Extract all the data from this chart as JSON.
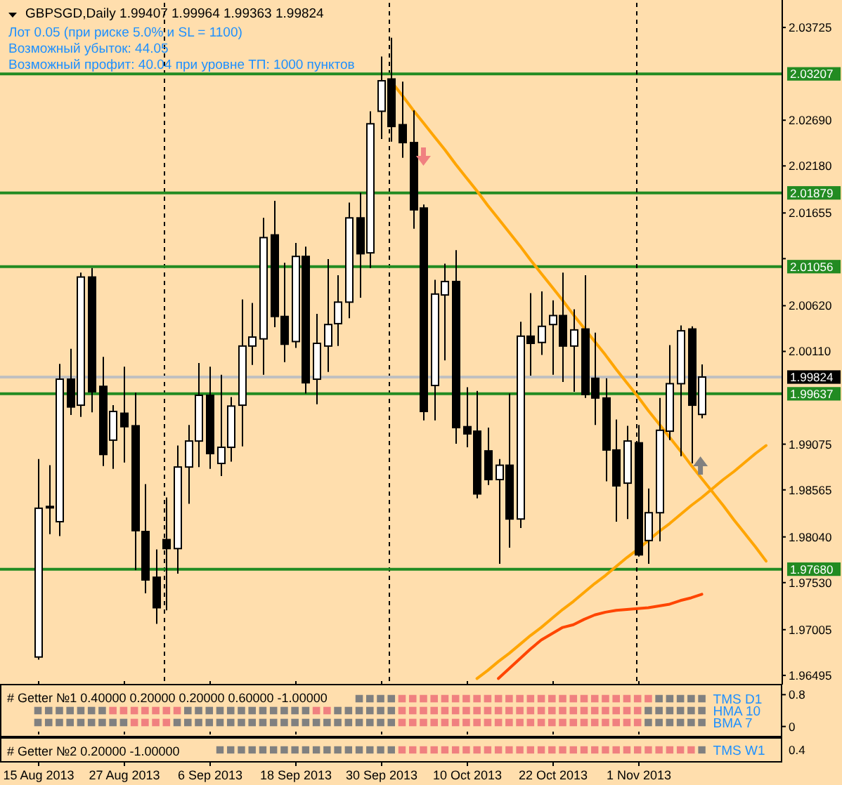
{
  "chart_data": [
    {
      "type": "candlestick",
      "title": "GBPSGD,Daily 1.99407 1.99964 1.99363 1.99824",
      "annotations": [
        "Лот 0.05 (при риске 5.0% и SL = 1100)",
        "Возможный убыток: 44.05",
        "Возможный профит: 40.04 при уровне ТП: 1000 пунктов"
      ],
      "categories": [
        "15 Aug 2013",
        null,
        null,
        null,
        null,
        null,
        null,
        null,
        "27 Aug 2013",
        null,
        null,
        null,
        null,
        null,
        null,
        null,
        "6 Sep 2013",
        null,
        null,
        null,
        null,
        null,
        null,
        null,
        "18 Sep 2013",
        null,
        null,
        null,
        null,
        null,
        null,
        null,
        "30 Sep 2013",
        null,
        null,
        null,
        null,
        null,
        null,
        null,
        "10 Oct 2013",
        null,
        null,
        null,
        null,
        null,
        null,
        null,
        "22 Oct 2013",
        null,
        null,
        null,
        null,
        null,
        null,
        null,
        "1 Nov 2013",
        null,
        null,
        null,
        null,
        null,
        null,
        null,
        null,
        null,
        null,
        null,
        null
      ],
      "ohlc": [
        [
          1.967,
          1.9891,
          1.9667,
          1.9836
        ],
        [
          1.9837,
          1.9884,
          1.9807,
          1.9838
        ],
        [
          1.9821,
          1.9997,
          1.9805,
          1.998
        ],
        [
          1.998,
          2.0014,
          1.994,
          1.9949
        ],
        [
          1.9951,
          2.0099,
          1.9938,
          2.0094
        ],
        [
          2.0094,
          2.0104,
          1.9943,
          1.9966
        ],
        [
          1.9972,
          2.0005,
          1.9883,
          1.9896
        ],
        [
          1.9912,
          1.9951,
          1.988,
          1.9944
        ],
        [
          1.9942,
          1.9994,
          1.9887,
          1.9927
        ],
        [
          1.9928,
          1.9965,
          1.9767,
          1.9811
        ],
        [
          1.981,
          1.9863,
          1.9741,
          1.9756
        ],
        [
          1.9759,
          1.979,
          1.9707,
          1.9725
        ],
        [
          1.9801,
          1.9848,
          1.9722,
          1.9791
        ],
        [
          1.9791,
          1.9906,
          1.9763,
          1.9882
        ],
        [
          1.9882,
          1.9929,
          1.9841,
          1.9911
        ],
        [
          1.9911,
          1.9998,
          1.9882,
          1.9962
        ],
        [
          1.9962,
          1.9994,
          1.988,
          1.9897
        ],
        [
          1.9886,
          1.9985,
          1.9872,
          1.9904
        ],
        [
          1.9904,
          1.996,
          1.9888,
          1.995
        ],
        [
          1.9951,
          2.0069,
          1.9905,
          2.0017
        ],
        [
          2.0017,
          2.0065,
          1.9996,
          2.0027
        ],
        [
          2.0025,
          2.016,
          1.9985,
          2.0138
        ],
        [
          2.0141,
          2.0179,
          2.0038,
          2.005
        ],
        [
          2.005,
          2.011,
          1.9999,
          2.0019
        ],
        [
          2.0022,
          2.0132,
          2.0015,
          2.0117
        ],
        [
          2.0117,
          2.0128,
          1.9964,
          1.9976
        ],
        [
          1.998,
          2.0053,
          1.9952,
          2.002
        ],
        [
          2.0017,
          2.0114,
          1.9988,
          2.0041
        ],
        [
          2.0042,
          2.0096,
          2.0017,
          2.0066
        ],
        [
          2.0066,
          2.0177,
          2.0048,
          2.016
        ],
        [
          2.016,
          2.0188,
          2.0071,
          2.012
        ],
        [
          2.0121,
          2.0279,
          2.0104,
          2.0265
        ],
        [
          2.0279,
          2.034,
          2.0248,
          2.0313
        ],
        [
          2.0315,
          2.0361,
          2.0245,
          2.0262
        ],
        [
          2.0264,
          2.0312,
          2.0227,
          2.0244
        ],
        [
          2.0244,
          2.028,
          2.0148,
          2.0169
        ],
        [
          2.0171,
          2.0175,
          1.9934,
          1.9944
        ],
        [
          1.9973,
          2.0091,
          1.9934,
          2.0075
        ],
        [
          2.0074,
          2.0109,
          2.0001,
          2.0089
        ],
        [
          2.0089,
          2.0124,
          1.9908,
          1.9926
        ],
        [
          1.9927,
          1.9971,
          1.9904,
          1.9919
        ],
        [
          1.9922,
          1.9967,
          1.9847,
          1.9852
        ],
        [
          1.99,
          1.9926,
          1.9862,
          1.9868
        ],
        [
          1.9868,
          1.9891,
          1.9774,
          1.9884
        ],
        [
          1.9884,
          1.9964,
          1.9792,
          1.9824
        ],
        [
          1.9824,
          2.0044,
          1.9814,
          2.0028
        ],
        [
          2.0028,
          2.0076,
          1.9984,
          2.002
        ],
        [
          2.0021,
          2.0078,
          2.0007,
          2.0039
        ],
        [
          2.0041,
          2.0068,
          1.9985,
          2.0051
        ],
        [
          2.0051,
          2.0099,
          1.9977,
          2.0017
        ],
        [
          2.0017,
          2.0058,
          1.9966,
          2.0035
        ],
        [
          2.0036,
          2.0096,
          1.9959,
          1.9963
        ],
        [
          1.9981,
          2.0032,
          1.9929,
          1.9959
        ],
        [
          1.9959,
          1.9981,
          1.9866,
          1.9901
        ],
        [
          1.9901,
          1.9935,
          1.9821,
          1.9861
        ],
        [
          1.9864,
          1.9928,
          1.9824,
          1.9911
        ],
        [
          1.9909,
          1.9929,
          1.9782,
          1.9784
        ],
        [
          1.98,
          1.9858,
          1.9774,
          1.9831
        ],
        [
          1.9831,
          1.9959,
          1.9799,
          1.9923
        ],
        [
          1.9922,
          2.0018,
          1.9912,
          1.9975
        ],
        [
          1.9975,
          2.004,
          1.9894,
          2.0034
        ],
        [
          2.0036,
          2.0039,
          1.9886,
          1.9951
        ],
        [
          1.99407,
          1.99964,
          1.99363,
          1.99824
        ],
        null,
        null,
        null,
        null,
        null,
        null
      ],
      "series": [
        {
          "type": "line",
          "color": "#ff4500",
          "values": [
            null,
            null,
            null,
            null,
            null,
            null,
            null,
            null,
            null,
            null,
            null,
            null,
            null,
            null,
            null,
            null,
            null,
            null,
            null,
            null,
            null,
            null,
            null,
            null,
            null,
            null,
            null,
            null,
            null,
            null,
            null,
            null,
            null,
            null,
            null,
            null,
            null,
            null,
            null,
            null,
            null,
            null,
            null,
            1.9646,
            1.9657,
            1.9668,
            1.9679,
            1.9689,
            1.9696,
            1.9703,
            1.9706,
            1.9712,
            1.9717,
            1.972,
            1.9722,
            1.9723,
            1.9724,
            1.9725,
            1.9727,
            1.9729,
            1.9733,
            1.9736,
            1.974,
            null,
            null,
            null,
            null,
            null,
            null
          ]
        },
        {
          "type": "line",
          "color": "#ffa500",
          "values": [
            null,
            null,
            null,
            null,
            null,
            null,
            null,
            null,
            null,
            null,
            null,
            null,
            null,
            null,
            null,
            null,
            null,
            null,
            null,
            null,
            null,
            null,
            null,
            null,
            null,
            null,
            null,
            null,
            null,
            null,
            null,
            null,
            null,
            2.0312,
            2.0297,
            2.0281,
            2.0266,
            2.0251,
            2.0236,
            2.022,
            2.0205,
            2.019,
            2.0174,
            2.0159,
            2.0144,
            2.0129,
            2.0113,
            2.0098,
            2.0083,
            2.0068,
            2.0052,
            2.0037,
            2.0022,
            2.0007,
            1.9991,
            1.9976,
            1.9961,
            1.9945,
            1.993,
            1.9915,
            1.99,
            1.9884,
            1.9869,
            1.9854,
            1.9839,
            1.9823,
            1.9808,
            1.9793,
            1.9777
          ]
        },
        {
          "type": "line",
          "color": "#ffa500",
          "values": [
            null,
            null,
            null,
            null,
            null,
            null,
            null,
            null,
            null,
            null,
            null,
            null,
            null,
            null,
            null,
            null,
            null,
            null,
            null,
            null,
            null,
            null,
            null,
            null,
            null,
            null,
            null,
            null,
            null,
            null,
            null,
            null,
            null,
            null,
            null,
            null,
            null,
            null,
            null,
            null,
            null,
            1.9646,
            1.9655,
            1.9665,
            1.9674,
            1.9684,
            1.9694,
            1.9703,
            1.9713,
            1.9723,
            1.9732,
            1.9742,
            1.9752,
            1.9761,
            1.9771,
            1.9781,
            1.979,
            1.98,
            1.981,
            1.9819,
            1.9829,
            1.9839,
            1.9848,
            1.9858,
            1.9868,
            1.9877,
            1.9887,
            1.9897,
            1.9906
          ]
        }
      ],
      "ylim": [
        1.964,
        2.04
      ],
      "yticks": [
        2.03725,
        {
          "value": 2.0269,
          "label": "2.02690"
        },
        {
          "value": 2.0218,
          "label": "2.02180"
        },
        2.01655,
        {
          "value": 2.01145,
          "label": null
        },
        {
          "value": 2.0062,
          "label": "2.00620"
        },
        {
          "value": 2.0011,
          "label": "2.00110"
        },
        1.99075,
        1.98565,
        {
          "value": 1.9804,
          "label": "1.98040"
        },
        {
          "value": 1.9753,
          "label": "1.97530"
        },
        1.97005,
        1.96495
      ],
      "ref_lines": [
        {
          "axis": "y",
          "value": 2.03207,
          "label": "2.03207",
          "color": "#228b22"
        },
        {
          "axis": "y",
          "value": 2.01879,
          "label": "2.01879",
          "color": "#228b22"
        },
        {
          "axis": "y",
          "value": 2.01056,
          "label": "2.01056",
          "color": "#228b22"
        },
        {
          "axis": "y",
          "value": 1.99824,
          "label": "1.99824",
          "color": "#c0c0c0"
        },
        {
          "axis": "y",
          "value": 1.99637,
          "label": "1.99637",
          "color": "#228b22"
        },
        {
          "axis": "y",
          "value": 1.9768,
          "label": "1.97680",
          "color": "#228b22"
        },
        {
          "axis": "x",
          "value": "1 Nov 2013",
          "color": "#000000",
          "line_style": "dashed"
        }
      ],
      "tick_labels": "y"
    },
    {
      "type": "scatter",
      "title": "# Getter №1 0.40000 0.20000 0.20000 0.60000 -1.00000",
      "marker": "square",
      "categories": [
        "15 Aug 2013",
        null,
        null,
        null,
        null,
        null,
        null,
        null,
        "27 Aug 2013",
        null,
        null,
        null,
        null,
        null,
        null,
        null,
        "6 Sep 2013",
        null,
        null,
        null,
        null,
        null,
        null,
        null,
        "18 Sep 2013",
        null,
        null,
        null,
        null,
        null,
        null,
        null,
        "30 Sep 2013",
        null,
        null,
        null,
        null,
        null,
        null,
        null,
        "10 Oct 2013",
        null,
        null,
        null,
        null,
        null,
        null,
        null,
        "22 Oct 2013",
        null,
        null,
        null,
        null,
        null,
        null,
        null,
        "1 Nov 2013",
        null,
        null,
        null,
        null,
        null,
        null,
        null,
        null,
        null,
        null,
        null,
        null
      ],
      "series": [
        {
          "name": "TMS D1",
          "values": [
            null,
            null,
            null,
            null,
            null,
            null,
            null,
            null,
            null,
            null,
            null,
            null,
            null,
            null,
            null,
            null,
            null,
            null,
            null,
            null,
            null,
            null,
            null,
            null,
            null,
            null,
            null,
            null,
            null,
            null,
            0.7,
            0.7,
            0.7,
            0.7,
            0.7,
            0.7,
            0.7,
            0.7,
            0.7,
            0.7,
            0.7,
            0.7,
            0.7,
            0.7,
            0.7,
            0.7,
            0.7,
            0.7,
            0.7,
            0.7,
            0.7,
            0.7,
            0.7,
            0.7,
            0.7,
            0.7,
            0.7,
            0.7,
            0.7,
            0.7,
            0.7,
            0.7,
            0.7,
            null,
            null,
            null,
            null,
            null,
            null
          ],
          "colors": [
            null,
            null,
            null,
            null,
            null,
            null,
            null,
            null,
            null,
            null,
            null,
            null,
            null,
            null,
            null,
            null,
            null,
            null,
            null,
            null,
            null,
            null,
            null,
            null,
            null,
            null,
            null,
            null,
            null,
            null,
            "#808080",
            "#808080",
            "#808080",
            "#808080",
            "#f08080",
            "#f08080",
            "#f08080",
            "#f08080",
            "#f08080",
            "#f08080",
            "#f08080",
            "#f08080",
            "#f08080",
            "#f08080",
            "#f08080",
            "#f08080",
            "#f08080",
            "#f08080",
            "#f08080",
            "#f08080",
            "#f08080",
            "#f08080",
            "#f08080",
            "#f08080",
            "#f08080",
            "#f08080",
            "#f08080",
            "#f08080",
            "#808080",
            "#808080",
            "#808080",
            "#808080",
            "#808080",
            null,
            null,
            null,
            null,
            null,
            null
          ]
        },
        {
          "name": "HMA 10",
          "values": [
            0.4,
            0.4,
            0.4,
            0.4,
            0.4,
            0.4,
            0.4,
            0.4,
            0.4,
            0.4,
            0.4,
            0.4,
            0.4,
            0.4,
            0.4,
            0.4,
            0.4,
            0.4,
            0.4,
            0.4,
            0.4,
            0.4,
            0.4,
            0.4,
            0.4,
            0.4,
            0.4,
            0.4,
            0.4,
            0.4,
            0.4,
            0.4,
            0.4,
            0.4,
            0.4,
            0.4,
            0.4,
            0.4,
            0.4,
            0.4,
            0.4,
            0.4,
            0.4,
            0.4,
            0.4,
            0.4,
            0.4,
            0.4,
            0.4,
            0.4,
            0.4,
            0.4,
            0.4,
            0.4,
            0.4,
            0.4,
            0.4,
            0.4,
            0.4,
            0.4,
            0.4,
            0.4,
            0.4,
            null,
            null,
            null,
            null,
            null,
            null
          ],
          "colors": [
            "#808080",
            "#808080",
            "#808080",
            "#808080",
            "#808080",
            "#808080",
            "#808080",
            "#f08080",
            "#f08080",
            "#f08080",
            "#f08080",
            "#f08080",
            "#f08080",
            "#f08080",
            "#808080",
            "#808080",
            "#808080",
            "#808080",
            "#808080",
            "#808080",
            "#808080",
            "#808080",
            "#808080",
            "#808080",
            "#808080",
            "#808080",
            "#f08080",
            "#f08080",
            "#808080",
            "#808080",
            "#808080",
            "#808080",
            "#808080",
            "#808080",
            "#f08080",
            "#f08080",
            "#f08080",
            "#f08080",
            "#f08080",
            "#f08080",
            "#f08080",
            "#f08080",
            "#f08080",
            "#f08080",
            "#f08080",
            "#f08080",
            "#f08080",
            "#f08080",
            "#f08080",
            "#f08080",
            "#f08080",
            "#f08080",
            "#f08080",
            "#f08080",
            "#f08080",
            "#f08080",
            "#f08080",
            "#808080",
            "#808080",
            "#808080",
            "#808080",
            "#808080",
            "#808080",
            null,
            null,
            null,
            null,
            null,
            null
          ]
        },
        {
          "name": "BMA 7",
          "values": [
            0.1,
            0.1,
            0.1,
            0.1,
            0.1,
            0.1,
            0.1,
            0.1,
            0.1,
            0.1,
            0.1,
            0.1,
            0.1,
            0.1,
            0.1,
            0.1,
            0.1,
            0.1,
            0.1,
            0.1,
            0.1,
            0.1,
            0.1,
            0.1,
            0.1,
            0.1,
            0.1,
            0.1,
            0.1,
            0.1,
            0.1,
            0.1,
            0.1,
            0.1,
            0.1,
            0.1,
            0.1,
            0.1,
            0.1,
            0.1,
            0.1,
            0.1,
            0.1,
            0.1,
            0.1,
            0.1,
            0.1,
            0.1,
            0.1,
            0.1,
            0.1,
            0.1,
            0.1,
            0.1,
            0.1,
            0.1,
            0.1,
            0.1,
            0.1,
            0.1,
            0.1,
            0.1,
            0.1,
            null,
            null,
            null,
            null,
            null,
            null
          ],
          "colors": [
            "#808080",
            "#808080",
            "#808080",
            "#808080",
            "#808080",
            "#808080",
            "#808080",
            "#808080",
            "#808080",
            "#f08080",
            "#f08080",
            "#f08080",
            "#f08080",
            "#808080",
            "#808080",
            "#808080",
            "#808080",
            "#808080",
            "#808080",
            "#808080",
            "#808080",
            "#808080",
            "#808080",
            "#808080",
            "#808080",
            "#808080",
            "#808080",
            "#808080",
            "#808080",
            "#808080",
            "#808080",
            "#808080",
            "#808080",
            "#808080",
            "#f08080",
            "#f08080",
            "#f08080",
            "#f08080",
            "#f08080",
            "#f08080",
            "#f08080",
            "#f08080",
            "#f08080",
            "#f08080",
            "#f08080",
            "#f08080",
            "#f08080",
            "#f08080",
            "#f08080",
            "#f08080",
            "#f08080",
            "#f08080",
            "#f08080",
            "#f08080",
            "#f08080",
            "#f08080",
            "#f08080",
            "#808080",
            "#808080",
            "#808080",
            "#808080",
            "#808080",
            "#808080",
            null,
            null,
            null,
            null,
            null,
            null
          ]
        }
      ],
      "ylim": [
        -0.2,
        1.0
      ],
      "yticks": [
        0.8,
        0
      ],
      "tick_labels": "y"
    },
    {
      "type": "other",
      "title": "# Getter №2 0.20000 -1.00000",
      "annotations": [
        "0.4",
        "TMS W1"
      ],
      "categories": [
        "15 Aug 2013",
        null,
        null,
        null,
        null,
        null,
        null,
        null,
        "27 Aug 2013",
        null,
        null,
        null,
        null,
        null,
        null,
        null,
        "6 Sep 2013",
        null,
        null,
        null,
        null,
        null,
        null,
        null,
        "18 Sep 2013",
        null,
        null,
        null,
        null,
        null,
        null,
        null,
        "30 Sep 2013",
        null,
        null,
        null,
        null,
        null,
        null,
        null,
        "10 Oct 2013",
        null,
        null,
        null,
        null,
        null,
        null,
        null,
        "22 Oct 2013",
        null,
        null,
        null,
        null,
        null,
        null,
        null,
        "1 Nov 2013",
        null,
        null,
        null,
        null,
        null,
        null,
        null,
        null,
        null,
        null,
        null,
        null
      ],
      "colors": [
        null,
        null,
        null,
        null,
        null,
        null,
        null,
        null,
        null,
        null,
        null,
        null,
        null,
        null,
        null,
        null,
        null,
        "#808080",
        "#808080",
        "#808080",
        "#808080",
        "#808080",
        "#808080",
        "#808080",
        "#808080",
        "#808080",
        "#808080",
        "#808080",
        "#808080",
        "#808080",
        "#808080",
        "#808080",
        "#808080",
        "#808080",
        "#f08080",
        "#f08080",
        "#f08080",
        "#f08080",
        "#f08080",
        "#f08080",
        "#f08080",
        "#f08080",
        "#f08080",
        "#f08080",
        "#f08080",
        "#f08080",
        "#f08080",
        "#f08080",
        "#f08080",
        "#f08080",
        "#f08080",
        "#f08080",
        "#f08080",
        "#f08080",
        "#f08080",
        "#f08080",
        "#f08080",
        "#f08080",
        "#f08080",
        "#f08080",
        "#f08080",
        "#f08080",
        "#808080",
        null,
        null,
        null,
        null,
        null,
        null
      ]
    }
  ]
}
